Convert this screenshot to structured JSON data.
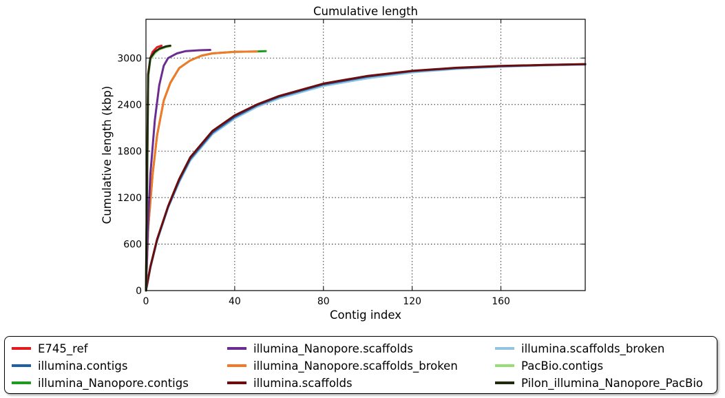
{
  "chart_data": {
    "type": "line",
    "title": "Cumulative length",
    "xlabel": "Contig index",
    "ylabel": "Cumulative length (kbp)",
    "xlim": [
      0,
      198
    ],
    "ylim": [
      0,
      3500
    ],
    "xticks": [
      0,
      40,
      80,
      120,
      160
    ],
    "yticks": [
      0,
      600,
      1200,
      1800,
      2400,
      3000
    ],
    "grid": true,
    "legend_position": "below",
    "series": [
      {
        "name": "E745_ref",
        "color": "#e41a1c",
        "x": [
          0,
          1,
          2,
          3,
          5,
          7
        ],
        "y": [
          0,
          2800,
          3000,
          3080,
          3140,
          3160
        ]
      },
      {
        "name": "illumina.contigs",
        "color": "#1f5fa8",
        "x": [
          0,
          2,
          5,
          10,
          15,
          20,
          30,
          40,
          50,
          60,
          80,
          100,
          120,
          140,
          160,
          180,
          198
        ],
        "y": [
          0,
          300,
          650,
          1080,
          1420,
          1700,
          2040,
          2240,
          2390,
          2500,
          2660,
          2760,
          2830,
          2870,
          2895,
          2910,
          2920
        ]
      },
      {
        "name": "illumina_Nanopore.contigs",
        "color": "#1e9b1e",
        "x": [
          0,
          1,
          3,
          5,
          8,
          11,
          15,
          20,
          25,
          30,
          40,
          50,
          54
        ],
        "y": [
          0,
          800,
          1500,
          2000,
          2450,
          2680,
          2870,
          2970,
          3030,
          3060,
          3080,
          3085,
          3090
        ]
      },
      {
        "name": "illumina_Nanopore.scaffolds",
        "color": "#6a2c91",
        "x": [
          0,
          1,
          2,
          4,
          6,
          8,
          10,
          14,
          18,
          24,
          29
        ],
        "y": [
          0,
          900,
          1500,
          2200,
          2650,
          2900,
          3000,
          3060,
          3090,
          3100,
          3105
        ]
      },
      {
        "name": "illumina_Nanopore.scaffolds_broken",
        "color": "#f07a2a",
        "x": [
          0,
          1,
          3,
          5,
          8,
          11,
          15,
          20,
          25,
          30,
          40,
          50
        ],
        "y": [
          0,
          800,
          1500,
          2000,
          2450,
          2680,
          2870,
          2970,
          3030,
          3060,
          3080,
          3085
        ]
      },
      {
        "name": "illumina.scaffolds",
        "color": "#6b0d0d",
        "x": [
          0,
          2,
          5,
          10,
          15,
          20,
          30,
          40,
          50,
          60,
          80,
          100,
          120,
          140,
          160,
          180,
          198
        ],
        "y": [
          0,
          310,
          660,
          1090,
          1440,
          1720,
          2060,
          2260,
          2400,
          2510,
          2670,
          2770,
          2835,
          2875,
          2898,
          2912,
          2922
        ]
      },
      {
        "name": "illumina.scaffolds_broken",
        "color": "#91c4e0",
        "x": [
          0,
          2,
          5,
          10,
          15,
          20,
          30,
          40,
          50,
          60,
          80,
          100,
          120,
          140,
          160,
          180,
          198
        ],
        "y": [
          0,
          290,
          640,
          1070,
          1400,
          1680,
          2020,
          2220,
          2370,
          2480,
          2640,
          2740,
          2815,
          2860,
          2888,
          2905,
          2915
        ]
      },
      {
        "name": "PacBio.contigs",
        "color": "#99dd77",
        "x": [
          0,
          1,
          2,
          4,
          6,
          9,
          11
        ],
        "y": [
          0,
          2750,
          2980,
          3060,
          3110,
          3140,
          3150
        ]
      },
      {
        "name": "Pilon_illumina_Nanopore_PacBio",
        "color": "#1f2a0e",
        "x": [
          0,
          1,
          2,
          4,
          6,
          9,
          11
        ],
        "y": [
          0,
          2780,
          3000,
          3080,
          3120,
          3150,
          3160
        ]
      }
    ]
  }
}
